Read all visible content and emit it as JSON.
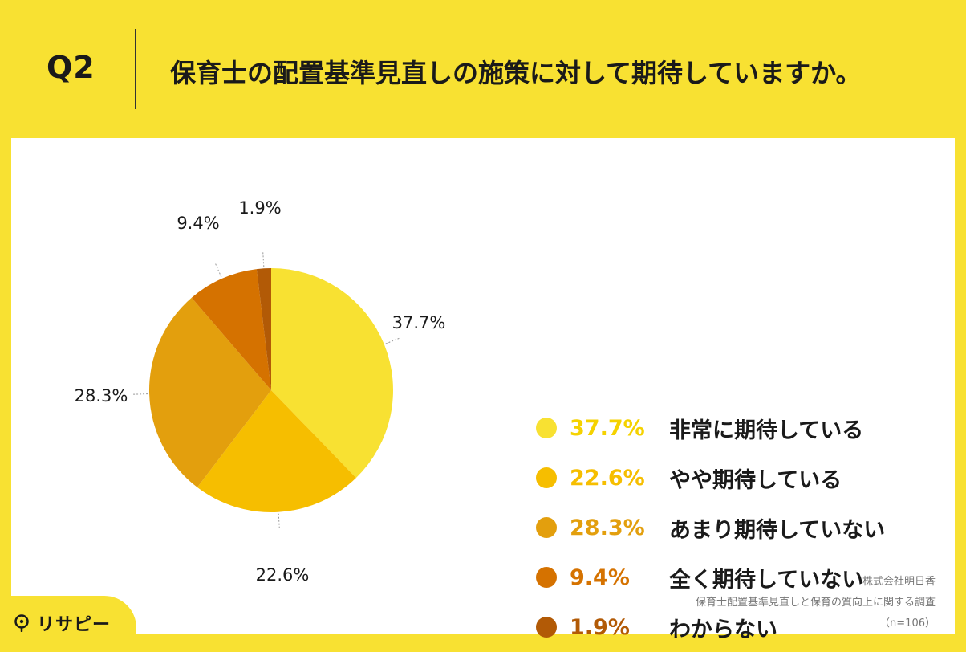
{
  "header": {
    "q_label": "Q2",
    "title": "保育士の配置基準見直しの施策に対して期待していますか。"
  },
  "chart_data": {
    "type": "pie",
    "title": "保育士の配置基準見直しの施策に対して期待していますか。",
    "start": "12 o'clock",
    "direction": "clockwise",
    "slices": [
      {
        "label": "非常に期待している",
        "value": 37.7,
        "display": "37.7%",
        "color": "#F8E132"
      },
      {
        "label": "やや期待している",
        "value": 22.6,
        "display": "22.6%",
        "color": "#F6BE00"
      },
      {
        "label": "あまり期待していない",
        "value": 28.3,
        "display": "28.3%",
        "color": "#E39F0D"
      },
      {
        "label": "全く期待していない",
        "value": 9.4,
        "display": "9.4%",
        "color": "#D57200"
      },
      {
        "label": "わからない",
        "value": 1.9,
        "display": "1.9%",
        "color": "#B25A06"
      }
    ]
  },
  "footer": {
    "company": "株式会社明日香",
    "survey": "保育士配置基準見直しと保育の質向上に関する調査",
    "sample": "（n=106）"
  },
  "logo": {
    "text": "リサピー",
    "icon": "pin-icon"
  }
}
